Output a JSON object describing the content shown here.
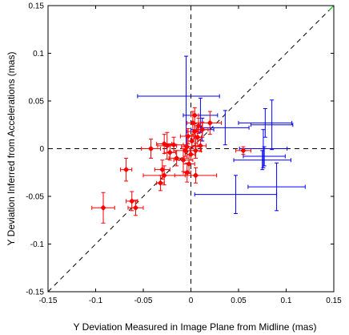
{
  "chart_data": {
    "type": "scatter",
    "xlabel": "Y Deviation Measured in Image Plane from Midline (mas)",
    "ylabel": "Y Deviation Inferred from Accelerations (mas)",
    "xlim": [
      -0.15,
      0.15
    ],
    "ylim": [
      -0.15,
      0.15
    ],
    "xticks": [
      -0.15,
      -0.1,
      -0.05,
      0,
      0.05,
      0.1,
      0.15
    ],
    "yticks": [
      -0.15,
      -0.1,
      -0.05,
      0,
      0.05,
      0.1,
      0.15
    ],
    "xtick_labels": [
      "-0.15",
      "-0.1",
      "-0.05",
      "0",
      "0.05",
      "0.1",
      "0.15"
    ],
    "ytick_labels": [
      "-0.15",
      "-0.1",
      "-0.05",
      "0",
      "0.05",
      "0.1",
      "0.15"
    ],
    "grid": false,
    "reference_lines": {
      "diagonal_dashed": [
        [
          -0.15,
          -0.15
        ],
        [
          0.15,
          0.15
        ]
      ],
      "vertical_dashed_x": 0,
      "horizontal_dashed_y": 0,
      "diagonal_solid_green_segment": [
        [
          0.145,
          0.145
        ],
        [
          0.15,
          0.15
        ]
      ]
    },
    "colors": {
      "red_series": "#ff0000",
      "blue_series": "#0000ff",
      "reference": "#000000",
      "green_segment": "#00cc00"
    },
    "series": [
      {
        "color": "#ff0000",
        "marker": "diamond",
        "points": [
          {
            "x": -0.092,
            "y": -0.062,
            "xerr": 0.012,
            "yerr": 0.016
          },
          {
            "x": -0.068,
            "y": -0.022,
            "xerr": 0.006,
            "yerr": 0.012
          },
          {
            "x": -0.062,
            "y": -0.055,
            "xerr": 0.006,
            "yerr": 0.01
          },
          {
            "x": -0.058,
            "y": -0.062,
            "xerr": 0.008,
            "yerr": 0.008
          },
          {
            "x": -0.042,
            "y": 0.0,
            "xerr": 0.01,
            "yerr": 0.01
          },
          {
            "x": -0.028,
            "y": -0.028,
            "xerr": 0.022,
            "yerr": 0.01
          },
          {
            "x": -0.032,
            "y": -0.036,
            "xerr": 0.004,
            "yerr": 0.008
          },
          {
            "x": -0.03,
            "y": -0.022,
            "xerr": 0.008,
            "yerr": 0.01
          },
          {
            "x": -0.028,
            "y": 0.005,
            "xerr": 0.008,
            "yerr": 0.01
          },
          {
            "x": -0.025,
            "y": 0.003,
            "xerr": 0.01,
            "yerr": 0.014
          },
          {
            "x": -0.022,
            "y": -0.004,
            "xerr": 0.006,
            "yerr": 0.008
          },
          {
            "x": -0.018,
            "y": 0.004,
            "xerr": 0.01,
            "yerr": 0.008
          },
          {
            "x": -0.015,
            "y": -0.01,
            "xerr": 0.008,
            "yerr": 0.008
          },
          {
            "x": -0.008,
            "y": -0.012,
            "xerr": 0.01,
            "yerr": 0.012
          },
          {
            "x": -0.006,
            "y": -0.002,
            "xerr": 0.012,
            "yerr": 0.006
          },
          {
            "x": -0.004,
            "y": 0.002,
            "xerr": 0.006,
            "yerr": 0.012
          },
          {
            "x": -0.003,
            "y": 0.013,
            "xerr": 0.008,
            "yerr": 0.008
          },
          {
            "x": -0.004,
            "y": -0.025,
            "xerr": 0.004,
            "yerr": 0.01
          },
          {
            "x": -0.002,
            "y": -0.016,
            "xerr": 0.006,
            "yerr": 0.01
          },
          {
            "x": 0.0,
            "y": -0.006,
            "xerr": 0.004,
            "yerr": 0.006
          },
          {
            "x": 0.001,
            "y": 0.008,
            "xerr": 0.004,
            "yerr": 0.006
          },
          {
            "x": 0.002,
            "y": 0.027,
            "xerr": 0.006,
            "yerr": 0.012
          },
          {
            "x": 0.004,
            "y": 0.035,
            "xerr": 0.004,
            "yerr": 0.008
          },
          {
            "x": 0.004,
            "y": 0.018,
            "xerr": 0.008,
            "yerr": 0.008
          },
          {
            "x": 0.005,
            "y": -0.002,
            "xerr": 0.006,
            "yerr": 0.008
          },
          {
            "x": 0.007,
            "y": 0.012,
            "xerr": 0.004,
            "yerr": 0.01
          },
          {
            "x": 0.008,
            "y": 0.024,
            "xerr": 0.004,
            "yerr": 0.008
          },
          {
            "x": 0.01,
            "y": 0.003,
            "xerr": 0.006,
            "yerr": 0.006
          },
          {
            "x": 0.012,
            "y": 0.02,
            "xerr": 0.006,
            "yerr": 0.008
          },
          {
            "x": 0.005,
            "y": -0.028,
            "xerr": 0.022,
            "yerr": 0.008
          },
          {
            "x": 0.02,
            "y": 0.027,
            "xerr": 0.012,
            "yerr": 0.012
          },
          {
            "x": 0.055,
            "y": -0.002,
            "xerr": 0.008,
            "yerr": 0.004
          }
        ]
      },
      {
        "color": "#0000ff",
        "marker": "none",
        "points": [
          {
            "x": -0.013,
            "y": 0.055,
            "xerr": 0.043,
            "yerr": 0.0
          },
          {
            "x": -0.005,
            "y": 0.05,
            "xerr": 0.0,
            "yerr": 0.047
          },
          {
            "x": 0.01,
            "y": 0.035,
            "xerr": 0.018,
            "yerr": 0.018
          },
          {
            "x": 0.012,
            "y": 0.02,
            "xerr": 0.012,
            "yerr": 0.012
          },
          {
            "x": 0.036,
            "y": 0.022,
            "xerr": 0.025,
            "yerr": 0.018
          },
          {
            "x": 0.078,
            "y": 0.027,
            "xerr": 0.028,
            "yerr": 0.015
          },
          {
            "x": 0.085,
            "y": 0.025,
            "xerr": 0.022,
            "yerr": 0.026
          },
          {
            "x": 0.077,
            "y": -0.008,
            "xerr": 0.022,
            "yerr": 0.01
          },
          {
            "x": 0.076,
            "y": 0.0,
            "xerr": 0.025,
            "yerr": 0.02
          },
          {
            "x": 0.075,
            "y": -0.012,
            "xerr": 0.03,
            "yerr": 0.01
          },
          {
            "x": 0.047,
            "y": -0.048,
            "xerr": 0.043,
            "yerr": 0.02
          },
          {
            "x": 0.09,
            "y": -0.04,
            "xerr": 0.03,
            "yerr": 0.025
          }
        ]
      }
    ]
  }
}
